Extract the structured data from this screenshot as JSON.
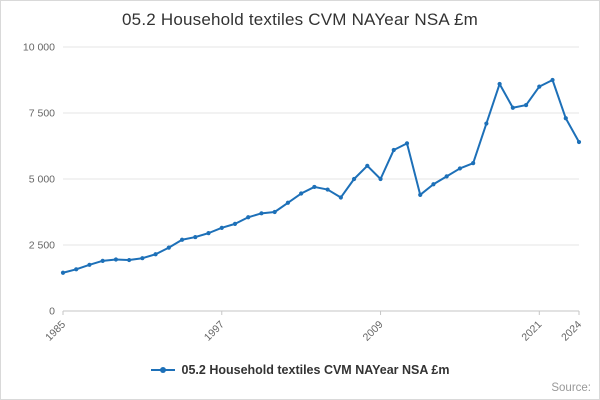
{
  "title": "05.2 Household textiles CVM NAYear NSA £m",
  "source_label": "Source:",
  "legend": {
    "label": "05.2 Household textiles CVM NAYear NSA £m"
  },
  "chart_data": {
    "type": "line",
    "title": "05.2 Household textiles CVM NAYear NSA £m",
    "x": [
      1985,
      1986,
      1987,
      1988,
      1989,
      1990,
      1991,
      1992,
      1993,
      1994,
      1995,
      1996,
      1997,
      1998,
      1999,
      2000,
      2001,
      2002,
      2003,
      2004,
      2005,
      2006,
      2007,
      2008,
      2009,
      2010,
      2011,
      2012,
      2013,
      2014,
      2015,
      2016,
      2017,
      2018,
      2019,
      2020,
      2021,
      2022,
      2023,
      2024
    ],
    "series": [
      {
        "name": "05.2 Household textiles CVM NAYear NSA £m",
        "values": [
          1450,
          1580,
          1750,
          1900,
          1950,
          1930,
          2000,
          2150,
          2400,
          2700,
          2800,
          2950,
          3150,
          3300,
          3550,
          3700,
          3750,
          4100,
          4450,
          4700,
          4600,
          4300,
          5000,
          5500,
          5000,
          6100,
          6350,
          4400,
          4800,
          5100,
          5400,
          5600,
          7100,
          8600,
          7700,
          7800,
          8500,
          8750,
          7300,
          6400
        ]
      }
    ],
    "xlabel": "",
    "ylabel": "",
    "ylim": [
      0,
      10000
    ],
    "yticks": [
      0,
      2500,
      5000,
      7500,
      10000
    ],
    "ytick_labels": [
      "0",
      "2 500",
      "5 000",
      "7 500",
      "10 000"
    ],
    "xticks": [
      1985,
      1997,
      2009,
      2021,
      2024
    ],
    "grid": true,
    "legend_position": "bottom",
    "line_color": "#1d70b8",
    "marker": "circle"
  }
}
